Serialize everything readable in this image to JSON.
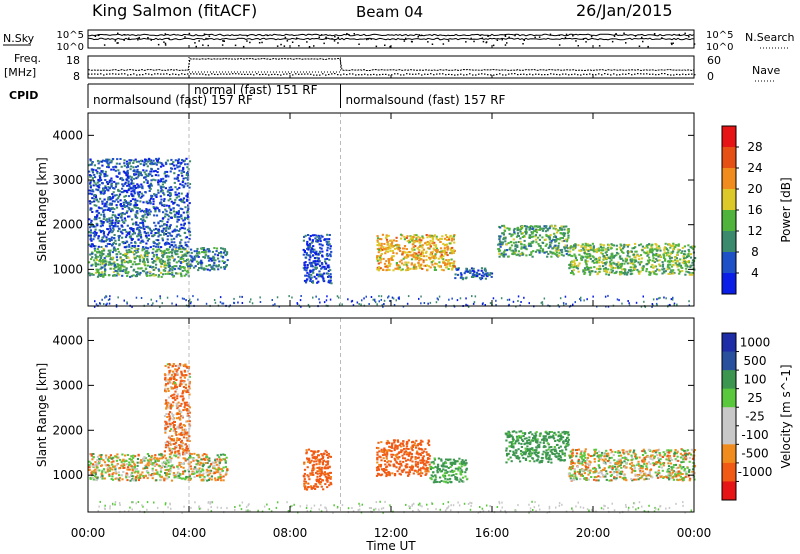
{
  "header": {
    "station": "King Salmon (fitACF)",
    "beam": "Beam 04",
    "date": "26/Jan/2015"
  },
  "strips": {
    "nsky_label": "N.Sky",
    "nsearch_label": "N.Search",
    "freq_label_1": "Freq.",
    "freq_label_2": "[MHz]",
    "nave_label": "Nave",
    "cpid_label": "CPID",
    "count_ticks_left": [
      "10^5",
      "10^0"
    ],
    "count_ticks_right": [
      "10^5",
      "10^0"
    ],
    "freq_ticks": [
      "18",
      "8"
    ],
    "nave_ticks": [
      "60",
      "0"
    ],
    "cpid_segments": [
      {
        "label": "normalsound (fast) 157 RF",
        "start_hour": 0.0,
        "end_hour": 10.0
      },
      {
        "label": "normal (fast) 151 RF",
        "start_hour": 4.0,
        "end_hour": 10.0
      },
      {
        "label": "normalsound (fast) 157 RF",
        "start_hour": 10.0,
        "end_hour": 24.0
      }
    ]
  },
  "colors": {
    "power": [
      "#0b1ee8",
      "#1e50c8",
      "#3c8a6e",
      "#50b43c",
      "#dcc828",
      "#f08c1e",
      "#e65014",
      "#e61414"
    ],
    "velocity": [
      "#e61414",
      "#f05a14",
      "#f08c1e",
      "#c8c8c8",
      "#c8c8c8",
      "#5ac83c",
      "#3c9650",
      "#28509c",
      "#1e2ca8"
    ]
  },
  "chart_data": [
    {
      "type": "heatmap",
      "title": "Power",
      "ylabel": "Slant Range [km]",
      "xlabel": "Time UT",
      "x_tick_labels": [
        "00:00",
        "04:00",
        "08:00",
        "12:00",
        "16:00",
        "20:00",
        "00:00"
      ],
      "y_tick_labels": [
        "1000",
        "2000",
        "3000",
        "4000"
      ],
      "xlim": [
        0,
        24
      ],
      "ylim": [
        180,
        4500
      ],
      "colorbar": {
        "label": "Power [dB]",
        "range": [
          0,
          32
        ],
        "ticks": [
          "4",
          "8",
          "12",
          "16",
          "20",
          "24",
          "28"
        ]
      },
      "regions": [
        {
          "t_start": 0.0,
          "t_end": 4.0,
          "range_km": [
            850,
            1500
          ],
          "level_db": 12
        },
        {
          "t_start": 0.0,
          "t_end": 4.0,
          "range_km": [
            1500,
            3500
          ],
          "level_db": 6
        },
        {
          "t_start": 4.0,
          "t_end": 5.5,
          "range_km": [
            1000,
            1500
          ],
          "level_db": 8
        },
        {
          "t_start": 8.5,
          "t_end": 9.6,
          "range_km": [
            700,
            1800
          ],
          "level_db": 5
        },
        {
          "t_start": 11.4,
          "t_end": 14.5,
          "range_km": [
            1000,
            1800
          ],
          "level_db": 20
        },
        {
          "t_start": 14.5,
          "t_end": 16.0,
          "range_km": [
            800,
            1050
          ],
          "level_db": 6
        },
        {
          "t_start": 16.2,
          "t_end": 19.0,
          "range_km": [
            1300,
            2000
          ],
          "level_db": 12
        },
        {
          "t_start": 19.0,
          "t_end": 24.0,
          "range_km": [
            900,
            1600
          ],
          "level_db": 14
        }
      ]
    },
    {
      "type": "heatmap",
      "title": "Velocity",
      "ylabel": "Slant Range [km]",
      "xlabel": "Time UT",
      "x_tick_labels": [
        "00:00",
        "04:00",
        "08:00",
        "12:00",
        "16:00",
        "20:00",
        "00:00"
      ],
      "y_tick_labels": [
        "1000",
        "2000",
        "3000",
        "4000"
      ],
      "xlim": [
        0,
        24
      ],
      "ylim": [
        180,
        4500
      ],
      "colorbar": {
        "label": "Velocity [m s^-1]",
        "range": [
          -1000,
          1000
        ],
        "ticks": [
          "1000",
          "500",
          "100",
          "25",
          "-25",
          "-100",
          "-500",
          "-1000"
        ]
      },
      "regions": [
        {
          "t_start": 0.0,
          "t_end": 5.5,
          "range_km": [
            900,
            1500
          ],
          "velocity_ms": 0
        },
        {
          "t_start": 3.0,
          "t_end": 4.0,
          "range_km": [
            1500,
            3500
          ],
          "velocity_ms": -100
        },
        {
          "t_start": 8.5,
          "t_end": 9.6,
          "range_km": [
            700,
            1600
          ],
          "velocity_ms": -200
        },
        {
          "t_start": 11.4,
          "t_end": 13.5,
          "range_km": [
            1000,
            1800
          ],
          "velocity_ms": -200
        },
        {
          "t_start": 13.5,
          "t_end": 15.0,
          "range_km": [
            850,
            1400
          ],
          "velocity_ms": 150
        },
        {
          "t_start": 16.5,
          "t_end": 19.0,
          "range_km": [
            1300,
            2000
          ],
          "velocity_ms": 200
        },
        {
          "t_start": 19.0,
          "t_end": 24.0,
          "range_km": [
            900,
            1600
          ],
          "velocity_ms": 0
        }
      ]
    }
  ]
}
